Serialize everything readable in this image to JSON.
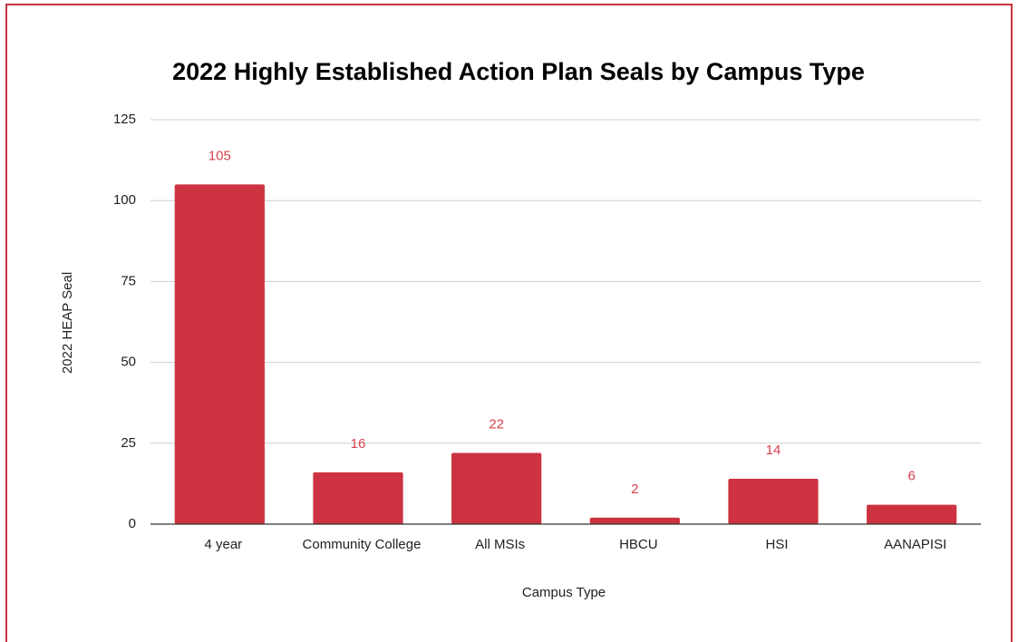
{
  "chart_data": {
    "type": "bar",
    "title": "2022 Highly Established Action Plan Seals by Campus Type",
    "x_label": "Campus Type",
    "y_label": "2022 HEAP Seal",
    "categories": [
      "4 year",
      "Community College",
      "All MSIs",
      "HBCU",
      "HSI",
      "AANAPISI"
    ],
    "values": [
      105,
      16,
      22,
      2,
      14,
      6
    ],
    "color": "#cc323f",
    "label_color": "#d6404c",
    "ylim": [
      0,
      125
    ],
    "yticks": [
      0,
      25,
      50,
      75,
      100,
      125
    ],
    "grid": true
  }
}
